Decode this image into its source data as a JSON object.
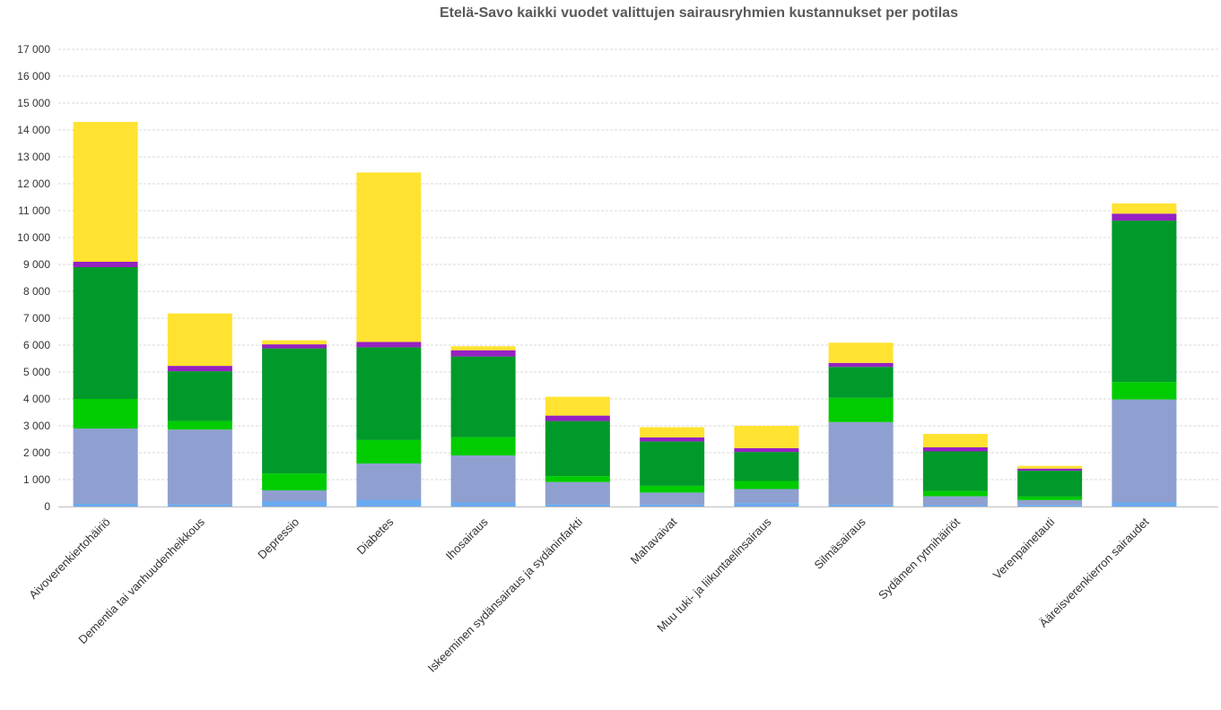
{
  "chart_data": {
    "type": "bar",
    "stacked": true,
    "title": "Etelä-Savo kaikki vuodet valittujen sairausryhmien kustannukset per potilas",
    "xlabel": "",
    "ylabel": "",
    "ylim": [
      0,
      17000
    ],
    "y_ticks": [
      0,
      1000,
      2000,
      3000,
      4000,
      5000,
      6000,
      7000,
      8000,
      9000,
      10000,
      11000,
      12000,
      13000,
      14000,
      15000,
      16000,
      17000
    ],
    "y_tick_labels": [
      "0",
      "1 000",
      "2 000",
      "3 000",
      "4 000",
      "5 000",
      "6 000",
      "7 000",
      "8 000",
      "9 000",
      "10 000",
      "11 000",
      "12 000",
      "13 000",
      "14 000",
      "15 000",
      "16 000",
      "17 000"
    ],
    "grid": true,
    "legend": "none",
    "categories": [
      "Aivoverenkiertohäiriö",
      "Dementia tai vanhuudenheikkous",
      "Depressio",
      "Diabetes",
      "Ihosairaus",
      "Iskeeminen sydänsairaus ja sydäninfarkti",
      "Mahavaivat",
      "Muu tuki- ja liikuntaelinsairaus",
      "Silmäsairaus",
      "Sydämen rytmihäiriöt",
      "Verenpainetauti",
      "Ääreisverenkierron sairaudet"
    ],
    "series": [
      {
        "color": "#6aaaf0",
        "values": [
          100,
          80,
          200,
          250,
          150,
          80,
          70,
          130,
          70,
          50,
          60,
          150
        ]
      },
      {
        "color": "#8fa0d0",
        "values": [
          2800,
          2780,
          400,
          1350,
          1750,
          830,
          450,
          520,
          3070,
          330,
          180,
          3830
        ]
      },
      {
        "color": "#00cc00",
        "values": [
          1100,
          320,
          630,
          870,
          680,
          220,
          250,
          300,
          900,
          200,
          130,
          650
        ]
      },
      {
        "color": "#009a2a",
        "values": [
          4900,
          1850,
          4650,
          3450,
          3000,
          2050,
          1650,
          1080,
          1150,
          1470,
          960,
          6000
        ]
      },
      {
        "color": "#9621c2",
        "values": [
          200,
          200,
          150,
          200,
          230,
          200,
          150,
          140,
          150,
          150,
          80,
          260
        ]
      },
      {
        "color": "#ffe330",
        "values": [
          5200,
          1950,
          150,
          6300,
          150,
          700,
          380,
          830,
          750,
          500,
          100,
          380
        ]
      }
    ]
  }
}
